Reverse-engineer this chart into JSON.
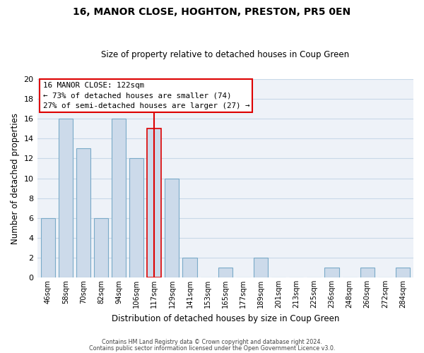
{
  "title": "16, MANOR CLOSE, HOGHTON, PRESTON, PR5 0EN",
  "subtitle": "Size of property relative to detached houses in Coup Green",
  "xlabel": "Distribution of detached houses by size in Coup Green",
  "ylabel": "Number of detached properties",
  "bin_labels": [
    "46sqm",
    "58sqm",
    "70sqm",
    "82sqm",
    "94sqm",
    "106sqm",
    "117sqm",
    "129sqm",
    "141sqm",
    "153sqm",
    "165sqm",
    "177sqm",
    "189sqm",
    "201sqm",
    "213sqm",
    "225sqm",
    "236sqm",
    "248sqm",
    "260sqm",
    "272sqm",
    "284sqm"
  ],
  "bar_heights": [
    6,
    16,
    13,
    6,
    16,
    12,
    15,
    10,
    2,
    0,
    1,
    0,
    2,
    0,
    0,
    0,
    1,
    0,
    1,
    0,
    1
  ],
  "bar_color": "#ccdaea",
  "bar_edge_color": "#7aaac8",
  "highlight_bar_index": 6,
  "vline_color": "#dd0000",
  "vline_bar_index": 6,
  "ylim": [
    0,
    20
  ],
  "yticks": [
    0,
    2,
    4,
    6,
    8,
    10,
    12,
    14,
    16,
    18,
    20
  ],
  "annotation_lines": [
    "16 MANOR CLOSE: 122sqm",
    "← 73% of detached houses are smaller (74)",
    "27% of semi-detached houses are larger (27) →"
  ],
  "footer_line1": "Contains HM Land Registry data © Crown copyright and database right 2024.",
  "footer_line2": "Contains public sector information licensed under the Open Government Licence v3.0.",
  "grid_color": "#c8d8e8",
  "bg_color": "#eef2f8"
}
